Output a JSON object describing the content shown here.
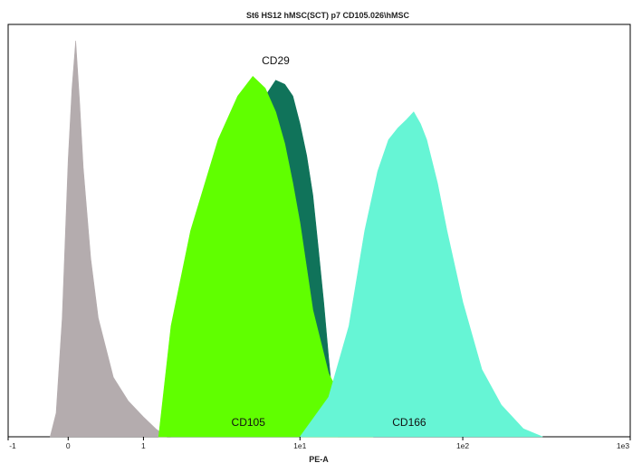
{
  "chart_data": {
    "type": "area",
    "title": "St6 HS12 hMSC(SCT) p7 CD105.026\\hMSC",
    "xlabel": "PE-A",
    "ylabel": "",
    "x_scale": "biexponential",
    "xlim": [
      -1,
      1000
    ],
    "ylim": [
      0,
      100
    ],
    "x_ticks": [
      {
        "value": -1,
        "label": "-1"
      },
      {
        "value": 0,
        "label": "0"
      },
      {
        "value": 1,
        "label": "1"
      },
      {
        "value": 10,
        "label": "1e1"
      },
      {
        "value": 100,
        "label": "1e2"
      },
      {
        "value": 1000,
        "label": "1e3"
      }
    ],
    "grid": false,
    "series": [
      {
        "name": "",
        "color": "#b4acae",
        "x": [
          -0.3,
          -0.2,
          -0.1,
          0.0,
          0.05,
          0.1,
          0.15,
          0.2,
          0.3,
          0.4,
          0.6,
          0.8,
          1.0,
          1.2,
          1.4
        ],
        "y": [
          0,
          6,
          30,
          70,
          88,
          100,
          85,
          68,
          45,
          30,
          15,
          9,
          5,
          2,
          0
        ]
      },
      {
        "name": "CD29",
        "color": "#10735a",
        "x": [
          1.5,
          2,
          3,
          4,
          5,
          6,
          7,
          8,
          9,
          10,
          11,
          12,
          13,
          14,
          15,
          16,
          17
        ],
        "y": [
          0,
          12,
          55,
          73,
          82,
          86,
          90,
          89,
          86,
          79,
          71,
          61,
          47,
          34,
          20,
          8,
          0
        ]
      },
      {
        "name": "CD105",
        "color": "#60ff00",
        "x": [
          1.25,
          1.5,
          2,
          3,
          4,
          5,
          6,
          7,
          8,
          9,
          10,
          12,
          15,
          20,
          25,
          28
        ],
        "y": [
          0,
          28,
          52,
          75,
          86,
          91,
          88,
          82,
          74,
          64,
          54,
          32,
          16,
          6,
          2,
          0
        ]
      },
      {
        "name": "CD166",
        "color": "#66f5d5",
        "x": [
          10,
          15,
          20,
          25,
          30,
          35,
          40,
          45,
          50,
          55,
          60,
          70,
          80,
          100,
          130,
          170,
          230,
          300
        ],
        "y": [
          0,
          10,
          28,
          52,
          67,
          75,
          78,
          80,
          82,
          79,
          75,
          64,
          52,
          34,
          17,
          8,
          2,
          0
        ]
      }
    ],
    "labels": [
      {
        "text": "CD29",
        "series": "CD29",
        "position": "above-peak"
      },
      {
        "text": "CD105",
        "series": "CD105",
        "position": "baseline"
      },
      {
        "text": "CD166",
        "series": "CD166",
        "position": "baseline"
      }
    ]
  }
}
